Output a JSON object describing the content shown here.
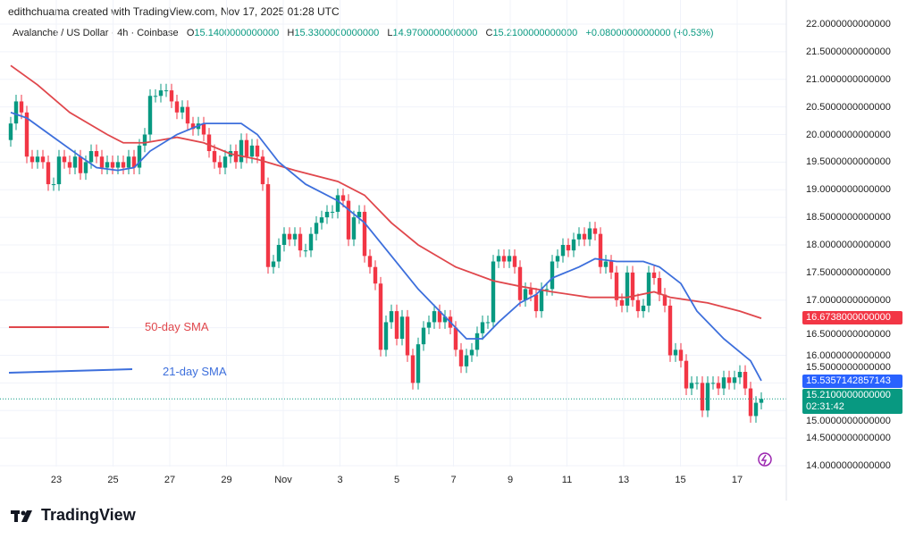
{
  "header": {
    "credit": "edithchuama created with TradingView.com, Nov 17, 2025 01:28 UTC"
  },
  "legend": {
    "symbol": "Avalanche / US Dollar · 4h · Coinbase",
    "o_label": "O",
    "o": "15.1400000000000",
    "h_label": "H",
    "h": "15.3300000000000",
    "l_label": "L",
    "l": "14.9700000000000",
    "c_label": "C",
    "c": "15.2100000000000",
    "change": "+0.0800000000000 (+0.53%)"
  },
  "annotations": {
    "sma50": "50-day SMA",
    "sma21": "21-day SMA"
  },
  "tags": {
    "sma50": "16.6738000000000",
    "sma21": "15.5357142857143",
    "last": "15.2100000000000",
    "countdown": "02:31:42"
  },
  "logo": {
    "text": "TradingView"
  },
  "colors": {
    "up": "#089981",
    "down": "#f23645",
    "sma50": "#e0474c",
    "sma21": "#3d6fdc",
    "last_tag": "#089981",
    "sma50_tag": "#f23645",
    "sma21_tag": "#2962ff"
  },
  "chart_data": {
    "type": "candlestick",
    "timeframe": "4h",
    "ylim": [
      14,
      22
    ],
    "y_ticks": [
      "22.0000000000000",
      "21.5000000000000",
      "21.0000000000000",
      "20.5000000000000",
      "20.0000000000000",
      "19.5000000000000",
      "19.0000000000000",
      "18.5000000000000",
      "18.0000000000000",
      "17.5000000000000",
      "17.0000000000000",
      "16.5000000000000",
      "16.0000000000000",
      "15.5000000000000",
      "15.0000000000000",
      "14.5000000000000",
      "14.0000000000000"
    ],
    "x_ticks": [
      "23",
      "25",
      "27",
      "29",
      "Nov",
      "3",
      "5",
      "7",
      "9",
      "11",
      "13",
      "15",
      "17"
    ],
    "grid": true,
    "first_open": 19.9,
    "closes": [
      20.2,
      20.6,
      20.4,
      19.6,
      19.5,
      19.6,
      19.5,
      19.1,
      19.1,
      19.6,
      19.5,
      19.4,
      19.6,
      19.3,
      19.5,
      19.7,
      19.6,
      19.4,
      19.5,
      19.4,
      19.5,
      19.4,
      19.6,
      19.4,
      19.8,
      20.0,
      20.7,
      20.7,
      20.8,
      20.8,
      20.6,
      20.4,
      20.5,
      20.2,
      20.1,
      20.2,
      20.0,
      19.7,
      19.5,
      19.4,
      19.6,
      19.7,
      19.5,
      19.9,
      19.6,
      19.8,
      19.6,
      19.1,
      17.6,
      17.7,
      18.0,
      18.2,
      18.1,
      18.2,
      17.9,
      17.9,
      18.2,
      18.4,
      18.5,
      18.6,
      18.6,
      18.9,
      18.8,
      18.1,
      18.5,
      18.6,
      17.8,
      17.6,
      17.3,
      16.1,
      16.6,
      16.8,
      16.3,
      16.7,
      16.0,
      15.5,
      16.2,
      16.5,
      16.6,
      16.8,
      16.6,
      16.7,
      16.5,
      16.1,
      15.8,
      16.0,
      16.1,
      16.4,
      16.6,
      16.6,
      17.7,
      17.8,
      17.7,
      17.8,
      17.6,
      17.0,
      17.2,
      17.1,
      16.8,
      17.2,
      17.2,
      17.7,
      17.8,
      18.0,
      17.9,
      18.1,
      18.2,
      18.1,
      18.3,
      18.2,
      17.6,
      17.7,
      17.5,
      17.0,
      16.9,
      17.5,
      17.0,
      16.8,
      16.9,
      17.5,
      17.4,
      17.1,
      16.9,
      16.0,
      16.1,
      15.9,
      15.4,
      15.5,
      15.5,
      15.0,
      15.5,
      15.5,
      15.4,
      15.6,
      15.5,
      15.6,
      15.7,
      15.4,
      14.9,
      15.14,
      15.21
    ],
    "series": [
      {
        "name": "50-day SMA",
        "points": [
          [
            0,
            21.25
          ],
          [
            5,
            20.9
          ],
          [
            11,
            20.4
          ],
          [
            18,
            20.0
          ],
          [
            21,
            19.85
          ],
          [
            25,
            19.85
          ],
          [
            31,
            19.95
          ],
          [
            36,
            19.85
          ],
          [
            41,
            19.65
          ],
          [
            46,
            19.55
          ],
          [
            53,
            19.35
          ],
          [
            61,
            19.15
          ],
          [
            66,
            18.9
          ],
          [
            71,
            18.4
          ],
          [
            76,
            18.0
          ],
          [
            83,
            17.6
          ],
          [
            90,
            17.35
          ],
          [
            95,
            17.25
          ],
          [
            101,
            17.15
          ],
          [
            108,
            17.05
          ],
          [
            115,
            17.05
          ],
          [
            120,
            17.15
          ],
          [
            123,
            17.05
          ],
          [
            130,
            16.95
          ],
          [
            136,
            16.8
          ],
          [
            140,
            16.67
          ]
        ]
      },
      {
        "name": "21-day SMA",
        "points": [
          [
            0,
            20.4
          ],
          [
            3,
            20.3
          ],
          [
            8,
            19.95
          ],
          [
            13,
            19.6
          ],
          [
            16,
            19.4
          ],
          [
            20,
            19.35
          ],
          [
            23,
            19.4
          ],
          [
            26,
            19.7
          ],
          [
            31,
            20.0
          ],
          [
            36,
            20.2
          ],
          [
            43,
            20.2
          ],
          [
            46,
            20.0
          ],
          [
            50,
            19.5
          ],
          [
            55,
            19.1
          ],
          [
            61,
            18.8
          ],
          [
            66,
            18.4
          ],
          [
            71,
            17.8
          ],
          [
            76,
            17.2
          ],
          [
            81,
            16.7
          ],
          [
            85,
            16.3
          ],
          [
            88,
            16.3
          ],
          [
            91,
            16.6
          ],
          [
            95,
            16.95
          ],
          [
            98,
            17.1
          ],
          [
            101,
            17.4
          ],
          [
            106,
            17.6
          ],
          [
            109,
            17.75
          ],
          [
            113,
            17.7
          ],
          [
            118,
            17.7
          ],
          [
            121,
            17.6
          ],
          [
            125,
            17.3
          ],
          [
            128,
            16.8
          ],
          [
            133,
            16.3
          ],
          [
            138,
            15.9
          ],
          [
            140,
            15.54
          ]
        ]
      }
    ]
  }
}
